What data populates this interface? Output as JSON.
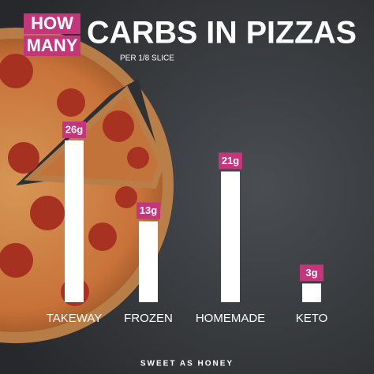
{
  "chart_data": {
    "type": "bar",
    "title_boxes": [
      "HOW",
      "MANY"
    ],
    "title": "CARBS IN PIZZAS",
    "subtitle": "PER 1/8 SLICE",
    "categories": [
      "TAKEWAY",
      "FROZEN",
      "HOMEMADE",
      "KETO"
    ],
    "values": [
      26,
      13,
      21,
      3
    ],
    "value_labels": [
      "26g",
      "13g",
      "21g",
      "3g"
    ],
    "color": "#ffffff",
    "label_color": "#c4357c",
    "footer": "SWEET AS HONEY"
  }
}
